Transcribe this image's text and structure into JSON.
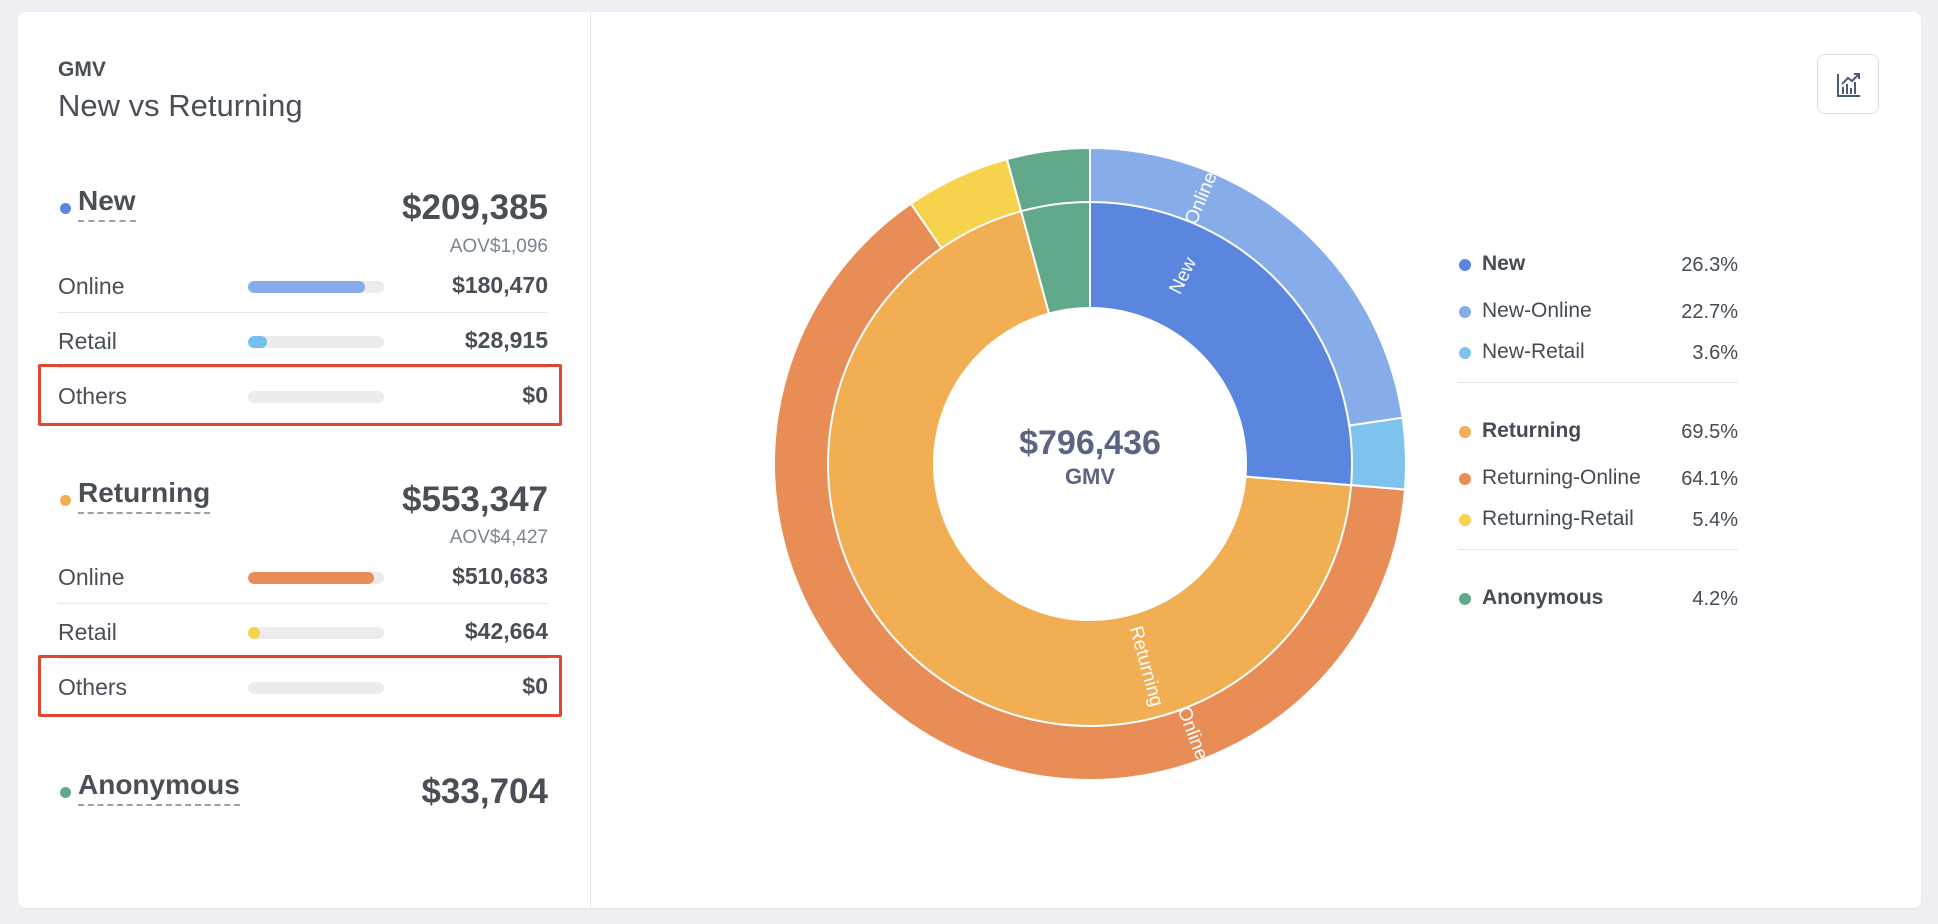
{
  "header": {
    "eyebrow": "GMV",
    "title": "New vs Returning"
  },
  "groups": [
    {
      "name": "New",
      "color": "#5b86e0",
      "total": "$209,385",
      "aov_label": "AOV",
      "aov_value": "$1,096",
      "rows": [
        {
          "label": "Online",
          "value": "$180,470",
          "fraction": 0.862,
          "color": "#87acea"
        },
        {
          "label": "Retail",
          "value": "$28,915",
          "fraction": 0.138,
          "color": "#76c0ee"
        },
        {
          "label": "Others",
          "value": "$0",
          "fraction": 0,
          "color": "#cccccc"
        }
      ]
    },
    {
      "name": "Returning",
      "color": "#f2ae52",
      "total": "$553,347",
      "aov_label": "AOV",
      "aov_value": "$4,427",
      "rows": [
        {
          "label": "Online",
          "value": "$510,683",
          "fraction": 0.923,
          "color": "#e88d56"
        },
        {
          "label": "Retail",
          "value": "$42,664",
          "fraction": 0.077,
          "color": "#f6d24d"
        },
        {
          "label": "Others",
          "value": "$0",
          "fraction": 0,
          "color": "#cccccc"
        }
      ]
    },
    {
      "name": "Anonymous",
      "color": "#62a88a",
      "total": "$33,704"
    }
  ],
  "chart_data": {
    "type": "pie",
    "center_value": "$796,436",
    "center_label": "GMV",
    "inner_ring": [
      {
        "name": "New",
        "value": 209385,
        "color": "#5b86e0",
        "label": "New"
      },
      {
        "name": "Returning",
        "value": 553347,
        "color": "#f2ae52",
        "label": "Returning"
      },
      {
        "name": "Anonymous",
        "value": 33704,
        "color": "#62a88a",
        "label": ""
      }
    ],
    "outer_ring": [
      {
        "name": "New-Online",
        "value": 180470,
        "color": "#87acea",
        "label": "Online"
      },
      {
        "name": "New-Retail",
        "value": 28915,
        "color": "#7ec3ee",
        "label": ""
      },
      {
        "name": "Returning-Online",
        "value": 510683,
        "color": "#e88d56",
        "label": "Online"
      },
      {
        "name": "Returning-Retail",
        "value": 42664,
        "color": "#f6d24d",
        "label": ""
      },
      {
        "name": "Anonymous",
        "value": 33704,
        "color": "#62a88a",
        "label": ""
      }
    ],
    "legend": [
      [
        {
          "name": "New",
          "pct": "26.3%",
          "color": "#5b86e0",
          "bold": true
        },
        {
          "name": "New-Online",
          "pct": "22.7%",
          "color": "#87acea",
          "bold": false
        },
        {
          "name": "New-Retail",
          "pct": "3.6%",
          "color": "#7ec3ee",
          "bold": false
        }
      ],
      [
        {
          "name": "Returning",
          "pct": "69.5%",
          "color": "#f2ae52",
          "bold": true
        },
        {
          "name": "Returning-Online",
          "pct": "64.1%",
          "color": "#e88d56",
          "bold": false
        },
        {
          "name": "Returning-Retail",
          "pct": "5.4%",
          "color": "#f6d24d",
          "bold": false
        }
      ],
      [
        {
          "name": "Anonymous",
          "pct": "4.2%",
          "color": "#62a88a",
          "bold": true
        }
      ]
    ],
    "legend_position": "right"
  },
  "toolbar": {
    "chart_toggle_icon": "chart-icon"
  }
}
